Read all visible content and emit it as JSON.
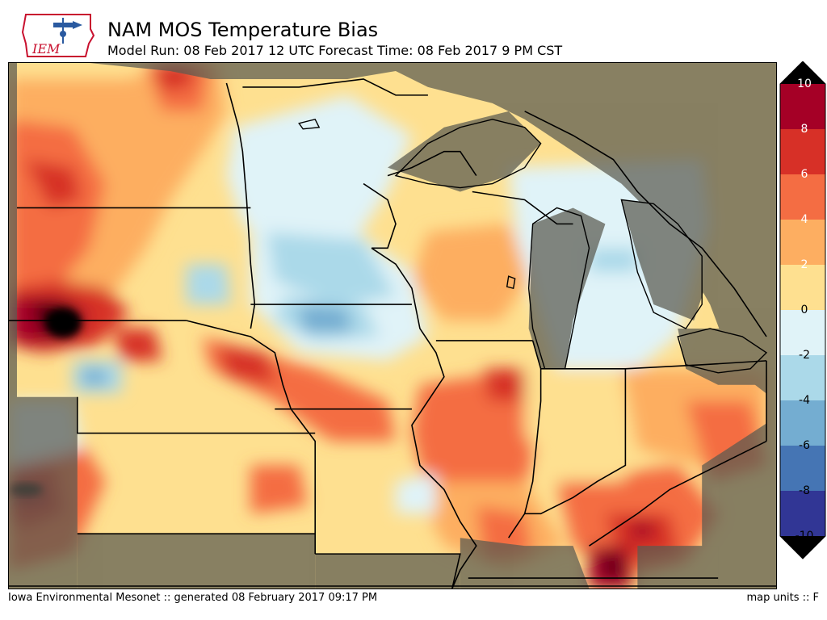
{
  "header": {
    "title": "NAM MOS Temperature Bias",
    "subtitle": "Model Run: 08 Feb 2017 12 UTC Forecast Time: 08 Feb 2017 9 PM CST",
    "logo_text": "IEM"
  },
  "legend": {
    "ticks": [
      "10",
      "8",
      "6",
      "4",
      "2",
      "0",
      "-2",
      "-4",
      "-6",
      "-8",
      "-10"
    ],
    "colors": [
      "#67001f",
      "#b2182b",
      "#d6604d",
      "#f4a582",
      "#fddbc7",
      "#f7f7f7",
      "#d1e5f0",
      "#92c5de",
      "#4393c3",
      "#2166ac",
      "#053061"
    ],
    "bands": [
      "#a50026",
      "#d73027",
      "#f46d43",
      "#fdae61",
      "#fee090",
      "#e0f3f8",
      "#abd9e9",
      "#74add1",
      "#4575b4",
      "#313695"
    ]
  },
  "footer": {
    "credit": "Iowa Environmental Mesonet :: generated 08 February 2017 09:17 PM",
    "units": "map units :: F"
  },
  "colors": {
    "land_mask": "#7a7055",
    "water_mask": "#6e6e64",
    "warm_peak": "#8b0a1e",
    "cool_peak": "#4f8ec4"
  }
}
